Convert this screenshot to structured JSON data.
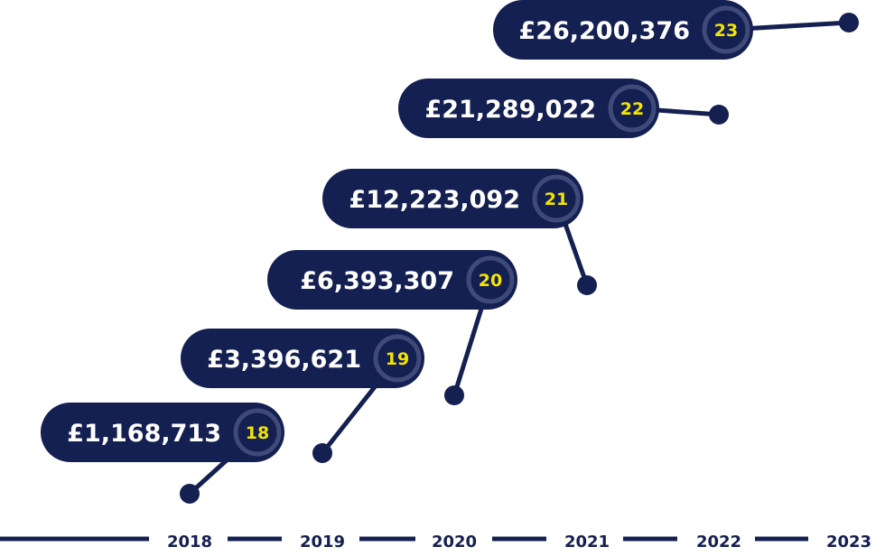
{
  "chart_data": {
    "type": "line",
    "x": [
      "2018",
      "2019",
      "2020",
      "2021",
      "2022",
      "2023"
    ],
    "values": [
      1168713,
      3396621,
      6393307,
      12223092,
      21289022,
      26200376
    ],
    "labels": [
      "£1,168,713",
      "£3,396,621",
      "£6,393,307",
      "£12,223,092",
      "£21,289,022",
      "£26,200,376"
    ],
    "badges": [
      "18",
      "19",
      "20",
      "21",
      "22",
      "23"
    ],
    "xlabel": "",
    "ylabel": "",
    "grid": false,
    "colors": {
      "pill": "#141f52",
      "ring": "#3f4a78",
      "badge_text": "#f5e400",
      "text": "#ffffff",
      "axis": "#141f52"
    }
  }
}
